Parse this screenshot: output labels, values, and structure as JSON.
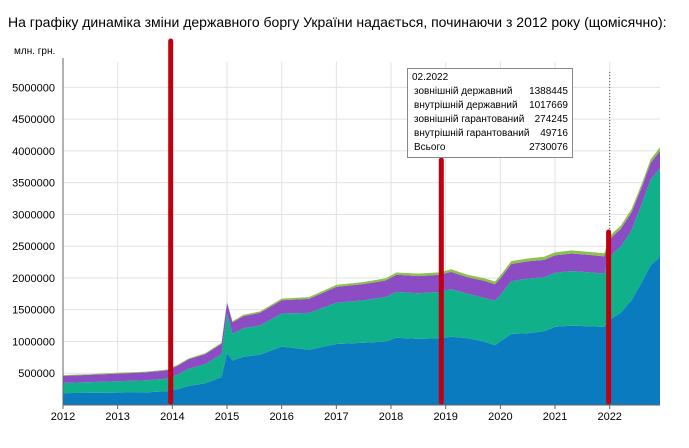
{
  "caption": "На графіку динаміка зміни державного боргу України надається, починаючи з 2012 року (щомісячно):",
  "chart_data": {
    "type": "area",
    "stacked": true,
    "ylabel": "млн. грн.",
    "ylim": [
      0,
      5400000
    ],
    "xlim": [
      2012,
      2022.92
    ],
    "y_ticks": [
      "500000",
      "1000000",
      "1500000",
      "2000000",
      "2500000",
      "3000000",
      "3500000",
      "4000000",
      "4500000",
      "5000000"
    ],
    "y_tick_values": [
      500000,
      1000000,
      1500000,
      2000000,
      2500000,
      3000000,
      3500000,
      4000000,
      4500000,
      5000000
    ],
    "x_ticks": [
      "2012",
      "2013",
      "2014",
      "2015",
      "2016",
      "2017",
      "2018",
      "2019",
      "2020",
      "2021",
      "2022"
    ],
    "grid": true,
    "x": [
      2012.0,
      2012.5,
      2013.0,
      2013.5,
      2013.9,
      2014.1,
      2014.3,
      2014.6,
      2014.9,
      2015.0,
      2015.1,
      2015.3,
      2015.6,
      2016.0,
      2016.5,
      2017.0,
      2017.5,
      2017.9,
      2018.1,
      2018.5,
      2018.9,
      2019.1,
      2019.4,
      2019.7,
      2019.9,
      2020.0,
      2020.2,
      2020.5,
      2020.8,
      2021.0,
      2021.3,
      2021.6,
      2021.9,
      2022.0,
      2022.08,
      2022.2,
      2022.4,
      2022.6,
      2022.75,
      2022.92
    ],
    "series": [
      {
        "color": "#0a7bbf",
        "values": [
          188000,
          190000,
          195000,
          198000,
          215000,
          250000,
          300000,
          340000,
          440000,
          820000,
          700000,
          760000,
          790000,
          920000,
          870000,
          960000,
          980000,
          1000000,
          1060000,
          1040000,
          1050000,
          1075000,
          1050000,
          1000000,
          940000,
          1000000,
          1120000,
          1130000,
          1160000,
          1230000,
          1250000,
          1240000,
          1230000,
          1340000,
          1388445,
          1450000,
          1650000,
          1950000,
          2200000,
          2330000
        ]
      },
      {
        "color": "#10b08a",
        "values": [
          160000,
          170000,
          180000,
          190000,
          200000,
          230000,
          270000,
          300000,
          360000,
          620000,
          420000,
          450000,
          460000,
          520000,
          580000,
          650000,
          670000,
          700000,
          720000,
          720000,
          730000,
          750000,
          700000,
          690000,
          700000,
          730000,
          830000,
          860000,
          850000,
          850000,
          860000,
          850000,
          840000,
          990000,
          1017669,
          1040000,
          1100000,
          1250000,
          1350000,
          1400000
        ]
      },
      {
        "color": "#8c4cc4",
        "values": [
          110000,
          115000,
          120000,
          125000,
          130000,
          140000,
          150000,
          160000,
          165000,
          170000,
          180000,
          190000,
          200000,
          210000,
          220000,
          250000,
          255000,
          260000,
          270000,
          270000,
          270000,
          270000,
          260000,
          265000,
          260000,
          265000,
          270000,
          270000,
          275000,
          275000,
          275000,
          275000,
          270000,
          274000,
          274245,
          280000,
          285000,
          260000,
          265000,
          270000
        ]
      },
      {
        "color": "#8dc24a",
        "values": [
          12000,
          12000,
          12000,
          12000,
          12000,
          13000,
          14000,
          15000,
          16000,
          17000,
          18000,
          20000,
          22000,
          25000,
          28000,
          30000,
          32000,
          34000,
          36000,
          38000,
          40000,
          42000,
          42000,
          43000,
          44000,
          45000,
          46000,
          47000,
          48000,
          48000,
          49000,
          49000,
          49500,
          49700,
          49716,
          50000,
          52000,
          54000,
          56000,
          58000
        ]
      }
    ]
  },
  "tooltip": {
    "date": "02.2022",
    "rows": [
      {
        "label": "зовнішній державний",
        "value": "1388445"
      },
      {
        "label": "внутрішній державний",
        "value": "1017669"
      },
      {
        "label": "зовнішній гарантований",
        "value": "274245"
      },
      {
        "label": "внутрішній гарантований",
        "value": "49716"
      },
      {
        "label": "Всього",
        "value": "2730076"
      }
    ]
  },
  "markers": {
    "color": "#c00010",
    "x": [
      2013.97,
      2018.92,
      2021.98
    ]
  }
}
